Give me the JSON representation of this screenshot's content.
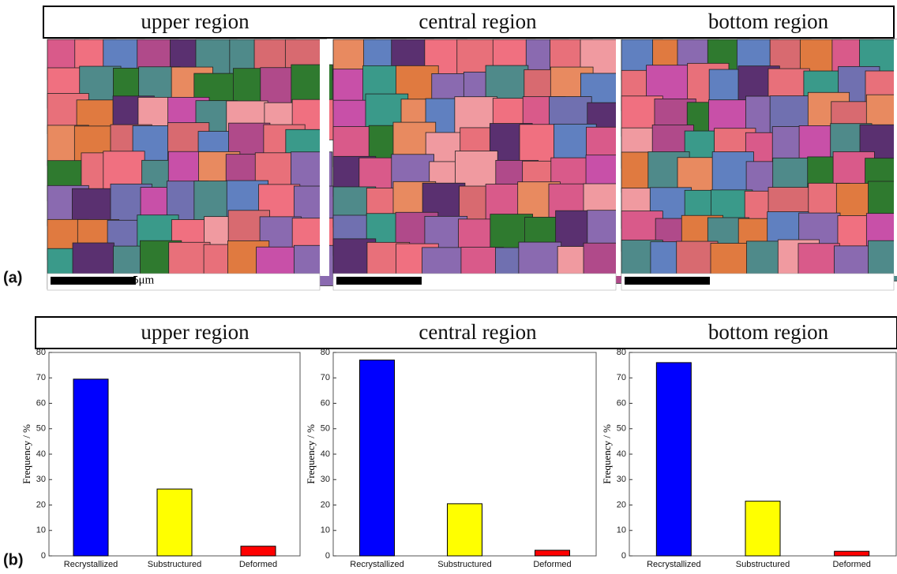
{
  "panel_a": {
    "label": "(a)",
    "titles": [
      "upper region",
      "central region",
      "bottom region"
    ],
    "scale_label": "5μm"
  },
  "panel_b": {
    "label": "(b)"
  },
  "chart_data": [
    {
      "type": "bar",
      "title": "upper region",
      "y_label": "Frequency / %",
      "categories": [
        "Recrystallized",
        "Substructured",
        "Deformed"
      ],
      "values": [
        69.5,
        26.3,
        3.8
      ],
      "colors": [
        "#0000ff",
        "#ffff00",
        "#ff0000"
      ],
      "ylim": [
        0,
        80
      ],
      "yticks": [
        0,
        10,
        20,
        30,
        40,
        50,
        60,
        70,
        80
      ]
    },
    {
      "type": "bar",
      "title": "central region",
      "y_label": "Frequency / %",
      "categories": [
        "Recrystallized",
        "Substructured",
        "Deformed"
      ],
      "values": [
        77,
        20.5,
        2.2
      ],
      "colors": [
        "#0000ff",
        "#ffff00",
        "#ff0000"
      ],
      "ylim": [
        0,
        80
      ],
      "yticks": [
        0,
        10,
        20,
        30,
        40,
        50,
        60,
        70,
        80
      ]
    },
    {
      "type": "bar",
      "title": "bottom region",
      "y_label": "Frequency / %",
      "categories": [
        "Recrystallized",
        "Substructured",
        "Deformed"
      ],
      "values": [
        76,
        21.5,
        1.8
      ],
      "colors": [
        "#0000ff",
        "#ffff00",
        "#ff0000"
      ],
      "ylim": [
        0,
        80
      ],
      "yticks": [
        0,
        10,
        20,
        30,
        40,
        50,
        60,
        70,
        80
      ]
    }
  ]
}
